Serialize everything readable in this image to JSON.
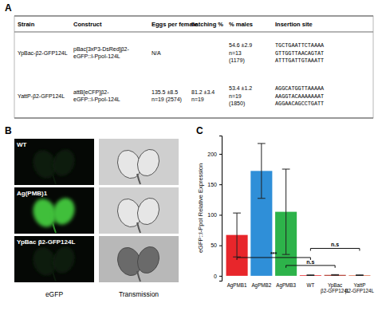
{
  "panel_labels": [
    "A",
    "B",
    "C"
  ],
  "table": {
    "columns": [
      "Strain",
      "Construct",
      "Eggs per female",
      "hatching %",
      "% males",
      "Insertion site"
    ],
    "rows": [
      [
        [
          "YpBac-β2-GFP124L"
        ],
        [
          "pBac[3xP3-DsRed]β2-",
          "eGFP::I-PpoI-124L"
        ],
        [
          "N/A"
        ],
        [],
        [
          "54.6 ±2.9",
          "n=13",
          "(1179)"
        ],
        [
          "TGCTGAATTCTAAAA",
          "GTTGGTTAACAGTAT",
          "ATTTGATTGTAAATT"
        ]
      ],
      [
        [
          "YattP-β2-GFP124L"
        ],
        [
          "attB[eCFP]β2-",
          "eGFP::I-PpoI-124L"
        ],
        [
          "135.5 ±8.5",
          "n=19 (2574)"
        ],
        [
          "81.2 ±3.4",
          "n=19"
        ],
        [
          "53.4 ±1.2",
          "n=19",
          "(1850)"
        ],
        [
          "AGGCATGGTTAAAAA",
          "AAGGTACAAAAAAAT",
          "AGGAACAGCCTGATT"
        ]
      ]
    ]
  },
  "images": {
    "rows": [
      "WT",
      "Ag(PMB)1",
      "YpBac β2-GFP124L"
    ],
    "columns": [
      "eGFP",
      "Transmission"
    ]
  },
  "chart_data": {
    "type": "bar",
    "y_label": "eGFP::I-PpoI Relative Expression",
    "categories": [
      "AgPMB1",
      "AgPMB2",
      "AgPMB3",
      "WT",
      "YpBac β2-GFP124L",
      "YattP β2-GFP124L"
    ],
    "values": [
      67,
      172,
      105,
      1,
      1.5,
      1
    ],
    "errors": [
      36,
      45,
      70,
      0.5,
      0.5,
      0.5
    ],
    "colors": [
      "#e8262b",
      "#2f8fd8",
      "#2db34a",
      "#e8262b",
      "#b03a2e",
      "#e07050"
    ],
    "ylim": [
      -8,
      230
    ],
    "yticks": [
      0,
      50,
      100,
      150,
      200
    ],
    "annotations": [
      {
        "text": "n.s",
        "from": "WT",
        "to": "YattP β2-GFP124L",
        "y": 45
      },
      {
        "text": "***",
        "from": "AgPMB1",
        "to": "WT",
        "y": 30
      },
      {
        "text": "n.s",
        "from": "AgPMB3",
        "to": "YpBac β2-GFP124L",
        "y": 17
      }
    ]
  }
}
